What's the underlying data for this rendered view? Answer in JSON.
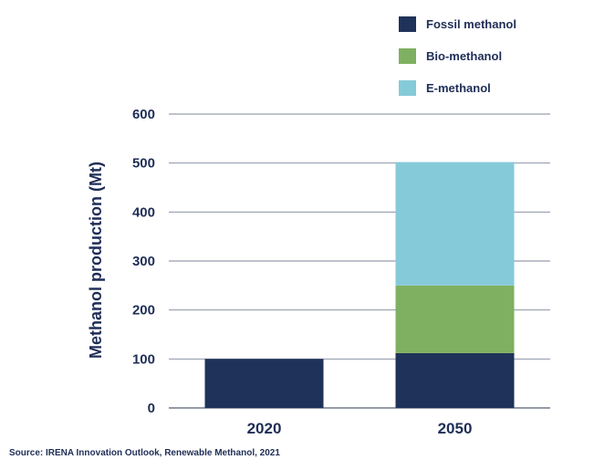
{
  "chart_data": {
    "type": "bar",
    "stacked": true,
    "categories": [
      "2020",
      "2050"
    ],
    "series": [
      {
        "name": "Fossil methanol",
        "color": "#1f3259",
        "values": [
          100,
          112
        ]
      },
      {
        "name": "Bio-methanol",
        "color": "#7fb061",
        "values": [
          0,
          138
        ]
      },
      {
        "name": "E-methanol",
        "color": "#85cad9",
        "values": [
          0,
          252
        ]
      }
    ],
    "ylabel": "Methanol production (Mt)",
    "ylim": [
      0,
      600
    ],
    "yticks": [
      0,
      100,
      200,
      300,
      400,
      500,
      600
    ],
    "grid": true,
    "legend_position": "top-right"
  },
  "source_note": "Source: IRENA Innovation Outlook, Renewable Methanol, 2021"
}
